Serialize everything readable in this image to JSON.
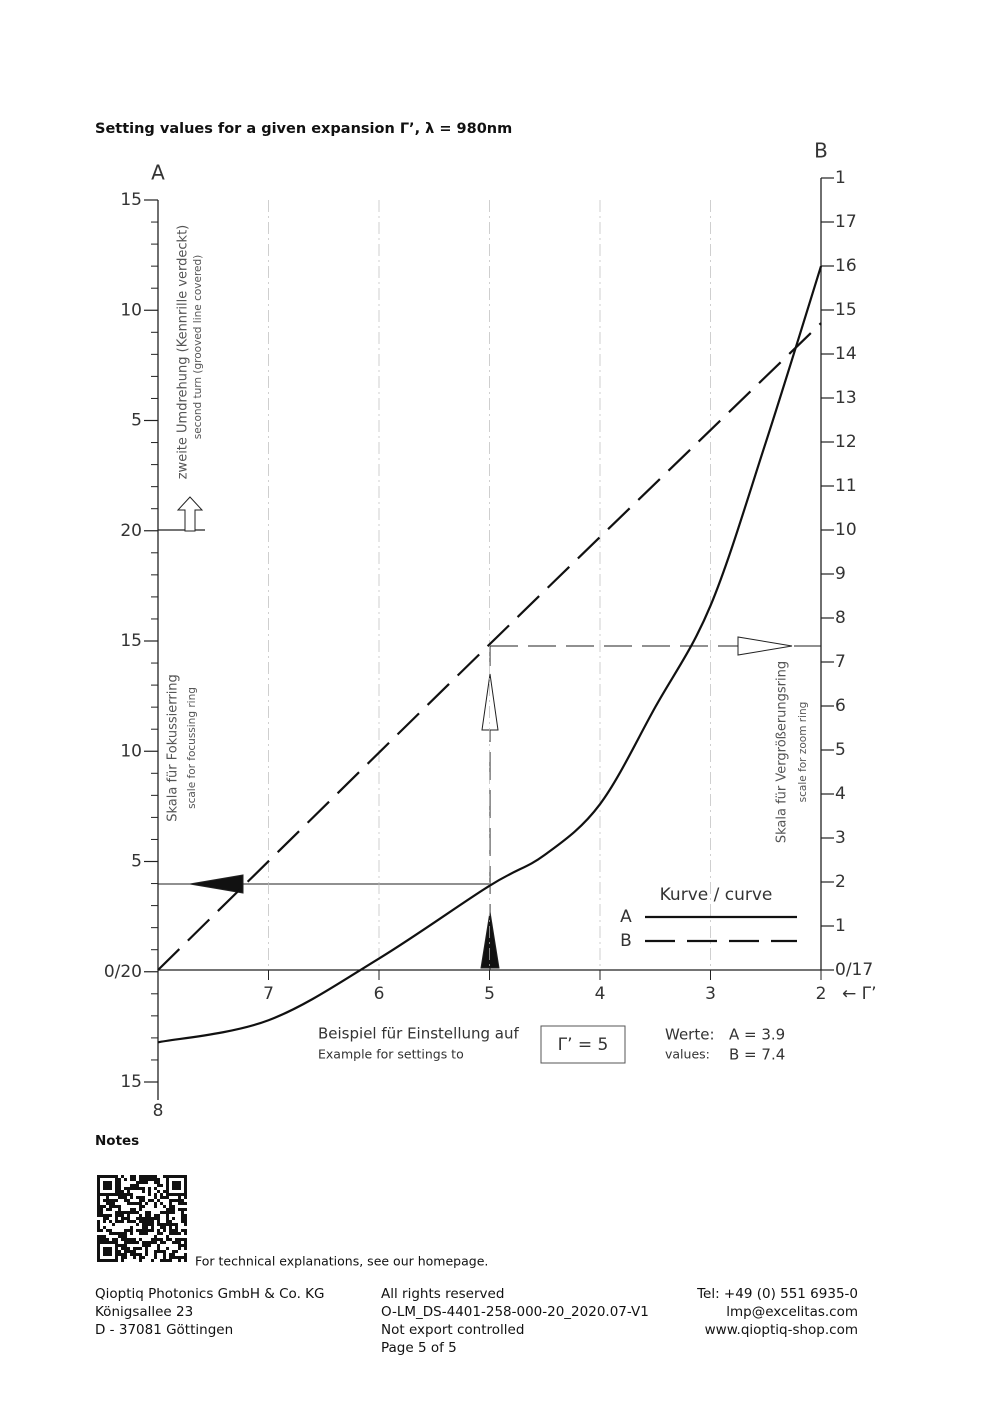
{
  "title": "Setting values for a given expansion Γ’, λ = 980nm",
  "chart_data": {
    "type": "line",
    "x_label": "← Γ’",
    "y_label": "A",
    "y2_label": "B",
    "xlim": [
      8,
      2
    ],
    "xticks": [
      8,
      7,
      6,
      5,
      4,
      3,
      2
    ],
    "ylim": [
      -5,
      35
    ],
    "yticks": [
      {
        "value": -5,
        "label": "15"
      },
      {
        "value": 0,
        "label": "0/20"
      },
      5,
      10,
      15,
      20,
      {
        "value": 25,
        "label": "5"
      },
      {
        "value": 30,
        "label": "10"
      },
      {
        "value": 35,
        "label": "15"
      }
    ],
    "y2lim": [
      0,
      18
    ],
    "y2ticks": [
      {
        "value": 0,
        "label": "0/17"
      },
      1,
      2,
      3,
      4,
      5,
      6,
      7,
      8,
      9,
      10,
      11,
      12,
      13,
      14,
      15,
      16,
      17,
      {
        "value": 18,
        "label": "1"
      }
    ],
    "grid": true,
    "left_note": "zweite Umdrehung (Kennrille verdeckt)",
    "left_note_en": "second turn (grooved line covered)",
    "left_scale": "Skala für Fokussierring",
    "left_scale_en": "scale for focussing ring",
    "right_scale": "Skala für Vergrößerungsring",
    "right_scale_en": "scale for zoom ring",
    "legend_title": "Kurve / curve",
    "series": [
      {
        "name": "A",
        "color": "#111111",
        "dash": false,
        "x": [
          8,
          7,
          6,
          5,
          4.5,
          4,
          3.5,
          3,
          2.5,
          2
        ],
        "values": [
          -3.2,
          -2.2,
          0.6,
          3.9,
          5.3,
          7.6,
          12,
          16.6,
          24,
          32
        ]
      },
      {
        "name": "B",
        "color": "#111111",
        "dash": true,
        "axis": "y2",
        "x": [
          8,
          5,
          2
        ],
        "values": [
          0,
          7.4,
          14.7
        ]
      }
    ],
    "example_de": "Beispiel für Einstellung auf",
    "example_en": "Example for settings to",
    "example_setting": "Γ’ = 5",
    "values_de": "Werte:",
    "values_en": "values:",
    "value_a": "A = 3.9",
    "value_b": "B = 7.4"
  },
  "notes": {
    "heading": "Notes",
    "text": "For technical explanations, see our homepage."
  },
  "footer": {
    "left": [
      "Qioptiq Photonics GmbH & Co. KG",
      "Königsallee 23",
      "D - 37081 Göttingen"
    ],
    "middle": [
      "All rights reserved",
      "O-LM_DS-4401-258-000-20_2020.07-V1",
      "Not export controlled",
      "Page 5 of 5"
    ],
    "right": [
      "Tel: +49 (0) 551 6935-0",
      "lmp@excelitas.com",
      "www.qioptiq-shop.com"
    ]
  }
}
